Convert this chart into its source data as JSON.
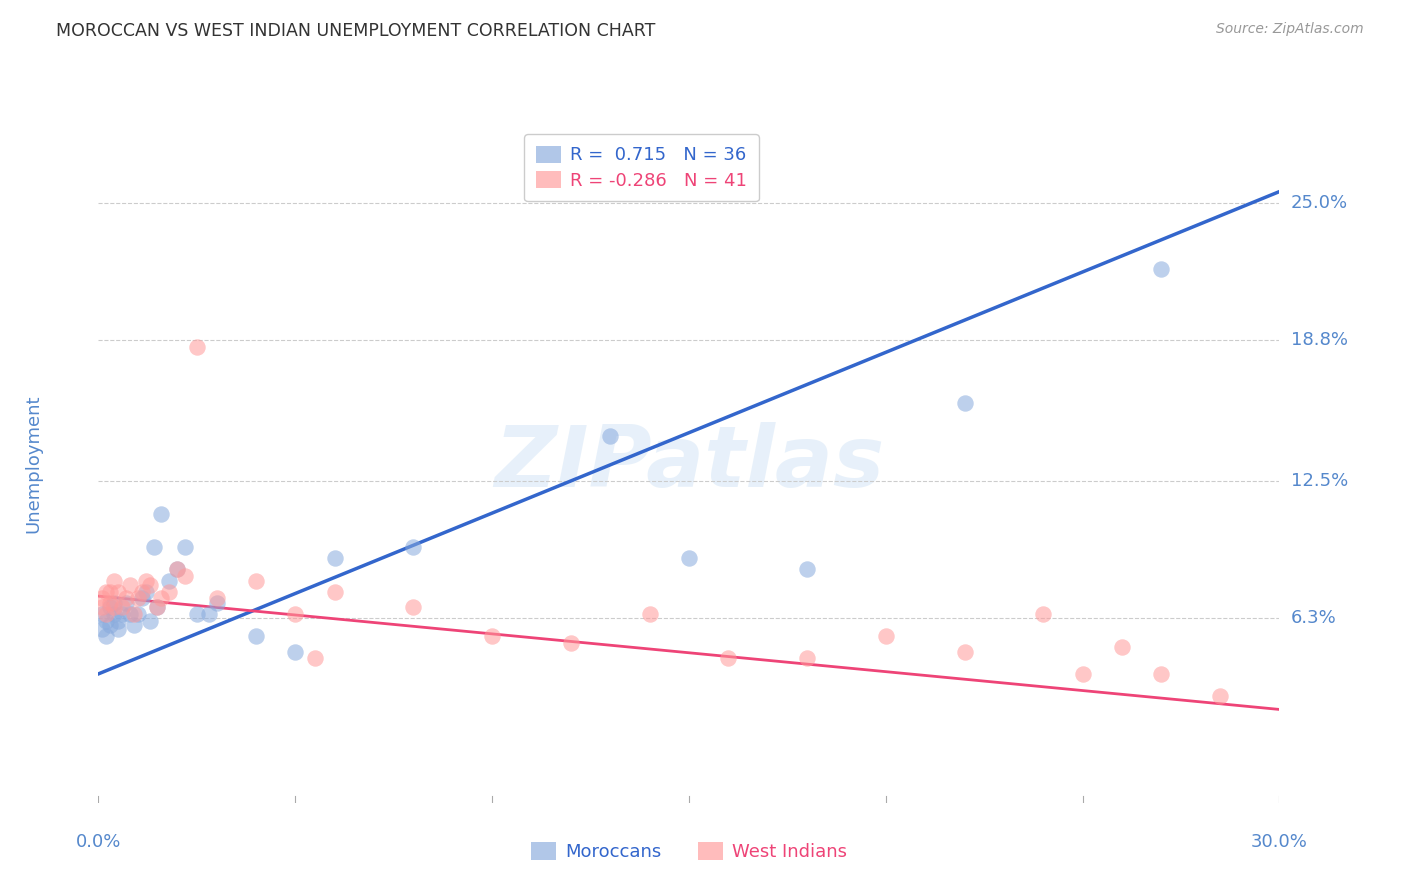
{
  "title": "MOROCCAN VS WEST INDIAN UNEMPLOYMENT CORRELATION CHART",
  "source": "Source: ZipAtlas.com",
  "ylabel": "Unemployment",
  "ytick_labels": [
    "25.0%",
    "18.8%",
    "12.5%",
    "6.3%"
  ],
  "ytick_values": [
    0.25,
    0.188,
    0.125,
    0.063
  ],
  "legend_moroccan_R": "0.715",
  "legend_moroccan_N": "36",
  "legend_westindian_R": "-0.286",
  "legend_westindian_N": "41",
  "moroccan_color": "#88AADD",
  "westindian_color": "#FF9999",
  "moroccan_line_color": "#3366CC",
  "westindian_line_color": "#EE4477",
  "xmin": 0.0,
  "xmax": 0.3,
  "ymin": -0.02,
  "ymax": 0.285,
  "moroccan_line_x0": 0.0,
  "moroccan_line_y0": 0.038,
  "moroccan_line_x1": 0.3,
  "moroccan_line_y1": 0.255,
  "westindian_line_x0": 0.0,
  "westindian_line_y0": 0.073,
  "westindian_line_x1": 0.3,
  "westindian_line_y1": 0.022,
  "moroccan_x": [
    0.001,
    0.001,
    0.002,
    0.002,
    0.003,
    0.003,
    0.004,
    0.004,
    0.005,
    0.005,
    0.006,
    0.007,
    0.008,
    0.009,
    0.01,
    0.011,
    0.012,
    0.013,
    0.014,
    0.015,
    0.016,
    0.018,
    0.02,
    0.022,
    0.025,
    0.028,
    0.03,
    0.04,
    0.05,
    0.06,
    0.08,
    0.13,
    0.15,
    0.18,
    0.22,
    0.27
  ],
  "moroccan_y": [
    0.065,
    0.058,
    0.062,
    0.055,
    0.06,
    0.068,
    0.065,
    0.07,
    0.062,
    0.058,
    0.065,
    0.07,
    0.065,
    0.06,
    0.065,
    0.072,
    0.075,
    0.062,
    0.095,
    0.068,
    0.11,
    0.08,
    0.085,
    0.095,
    0.065,
    0.065,
    0.07,
    0.055,
    0.048,
    0.09,
    0.095,
    0.145,
    0.09,
    0.085,
    0.16,
    0.22
  ],
  "westindian_x": [
    0.001,
    0.001,
    0.002,
    0.002,
    0.003,
    0.003,
    0.004,
    0.004,
    0.005,
    0.006,
    0.007,
    0.008,
    0.009,
    0.01,
    0.011,
    0.012,
    0.013,
    0.015,
    0.016,
    0.018,
    0.02,
    0.022,
    0.025,
    0.03,
    0.04,
    0.05,
    0.055,
    0.06,
    0.08,
    0.1,
    0.12,
    0.14,
    0.16,
    0.18,
    0.2,
    0.22,
    0.24,
    0.25,
    0.26,
    0.27,
    0.285
  ],
  "westindian_y": [
    0.068,
    0.072,
    0.075,
    0.065,
    0.07,
    0.075,
    0.068,
    0.08,
    0.075,
    0.068,
    0.072,
    0.078,
    0.065,
    0.072,
    0.075,
    0.08,
    0.078,
    0.068,
    0.072,
    0.075,
    0.085,
    0.082,
    0.185,
    0.072,
    0.08,
    0.065,
    0.045,
    0.075,
    0.068,
    0.055,
    0.052,
    0.065,
    0.045,
    0.045,
    0.055,
    0.048,
    0.065,
    0.038,
    0.05,
    0.038,
    0.028
  ],
  "background_color": "#FFFFFF",
  "grid_color": "#CCCCCC",
  "title_color": "#333333",
  "tick_label_color": "#5588CC"
}
